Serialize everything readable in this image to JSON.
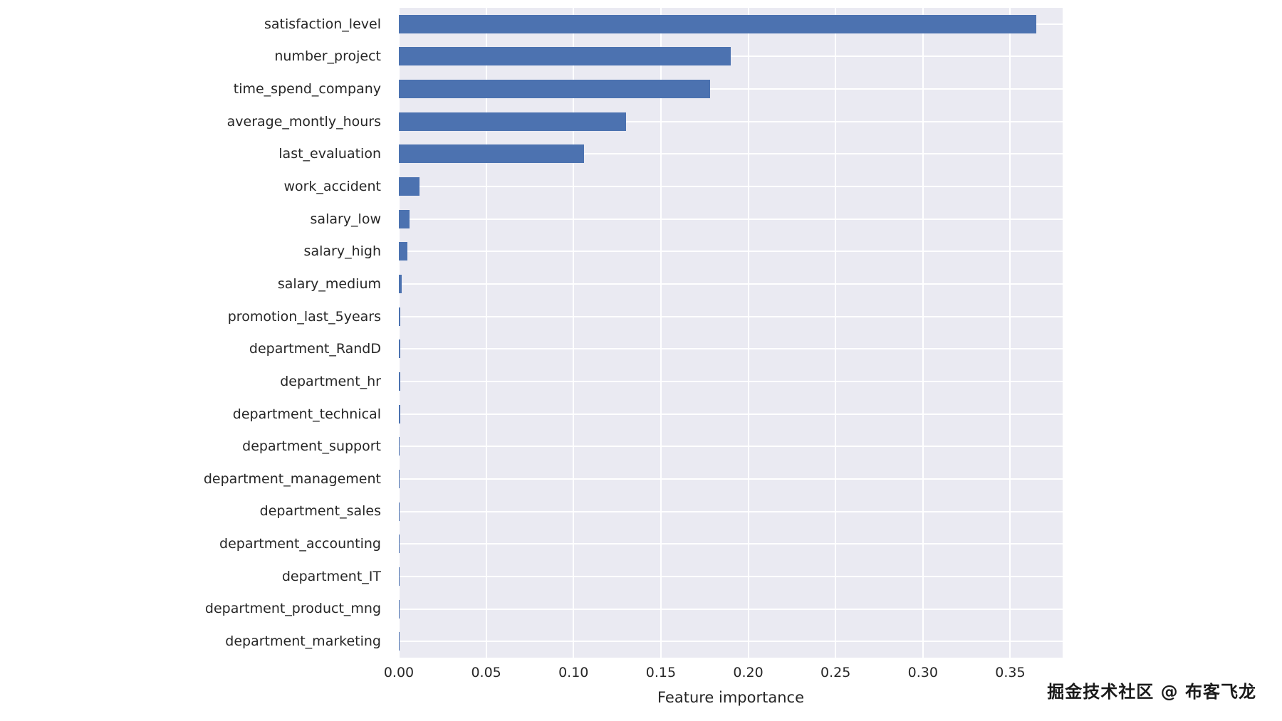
{
  "chart_data": {
    "type": "bar",
    "orientation": "horizontal",
    "title": "",
    "xlabel": "Feature importance",
    "ylabel": "",
    "xlim": [
      0,
      0.38
    ],
    "xticks": [
      0.0,
      0.05,
      0.1,
      0.15,
      0.2,
      0.25,
      0.3,
      0.35
    ],
    "grid": true,
    "legend": false,
    "categories": [
      "satisfaction_level",
      "number_project",
      "time_spend_company",
      "average_montly_hours",
      "last_evaluation",
      "work_accident",
      "salary_low",
      "salary_high",
      "salary_medium",
      "promotion_last_5years",
      "department_RandD",
      "department_hr",
      "department_technical",
      "department_support",
      "department_management",
      "department_sales",
      "department_accounting",
      "department_IT",
      "department_product_mng",
      "department_marketing"
    ],
    "values": [
      0.365,
      0.19,
      0.178,
      0.13,
      0.106,
      0.012,
      0.006,
      0.005,
      0.0015,
      0.001,
      0.001,
      0.0008,
      0.0007,
      0.0006,
      0.0004,
      0.0004,
      0.0004,
      0.0003,
      0.0003,
      0.0002
    ],
    "colors": {
      "bar": "#4c72b0",
      "plot_background": "#eaeaf2",
      "grid": "#ffffff",
      "text": "#262626",
      "page_background": "#ffffff"
    }
  },
  "watermark": "掘金技术社区 @ 布客飞龙"
}
